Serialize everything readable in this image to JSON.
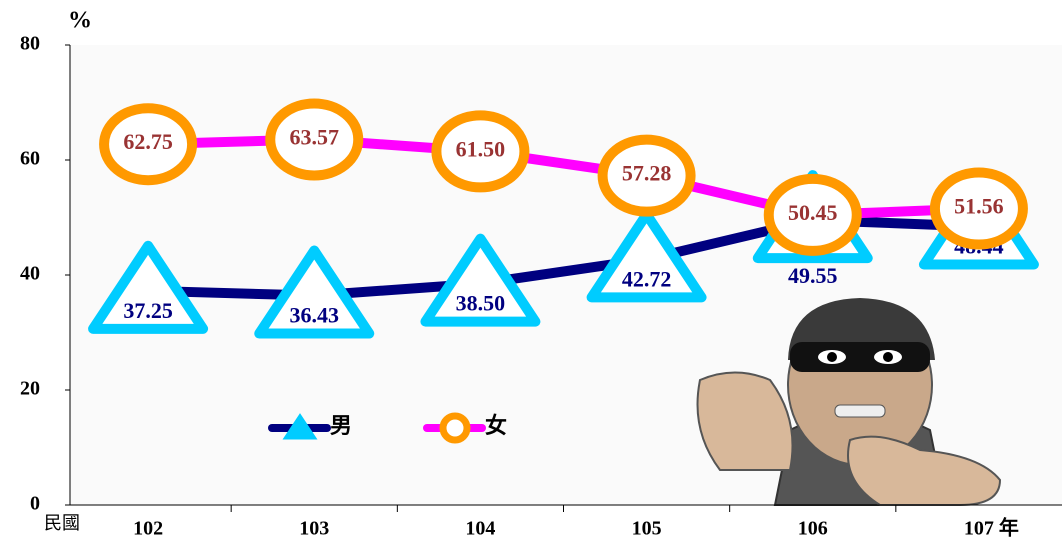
{
  "chart_data": {
    "type": "line",
    "ylabel": "%",
    "xlabel": "民國",
    "x_suffix": "年",
    "categories": [
      "102",
      "103",
      "104",
      "105",
      "106",
      "107"
    ],
    "series": [
      {
        "name": "男",
        "color": "#000080",
        "marker_color": "#00ccff",
        "label_color": "#000080",
        "values": [
          37.25,
          36.43,
          38.5,
          42.72,
          49.55,
          48.44
        ],
        "value_labels": [
          "37.25",
          "36.43",
          "38.50",
          "42.72",
          "49.55",
          "48.44"
        ]
      },
      {
        "name": "女",
        "color": "#ff00ff",
        "marker_color": "#ff9900",
        "label_color": "#993333",
        "values": [
          62.75,
          63.57,
          61.5,
          57.28,
          50.45,
          51.56
        ],
        "value_labels": [
          "62.75",
          "63.57",
          "61.50",
          "57.28",
          "50.45",
          "51.56"
        ]
      }
    ],
    "ylim": [
      0,
      80
    ],
    "yticks": [
      0,
      20,
      40,
      60,
      80
    ],
    "grid": false
  }
}
